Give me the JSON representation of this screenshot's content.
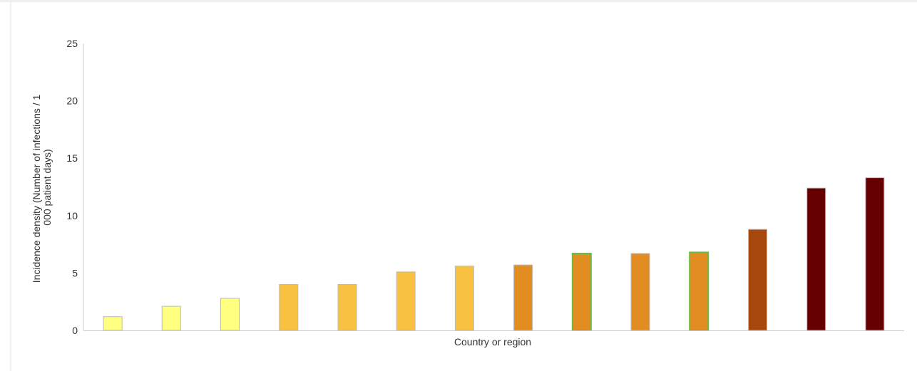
{
  "chart_data": {
    "type": "bar",
    "xlabel": "Country or region",
    "ylabel_lines": [
      "Incidence density (Number of infections / 1",
      "000 patient days)"
    ],
    "ylim": [
      0,
      25
    ],
    "yticks": [
      "0",
      "5",
      "10",
      "15",
      "20",
      "25"
    ],
    "ytick_values": [
      0,
      5,
      10,
      15,
      20,
      25
    ],
    "categories": [
      "",
      "",
      "",
      "",
      "",
      "",
      "",
      "",
      "",
      "",
      "",
      "",
      "",
      ""
    ],
    "values": [
      1.2,
      2.1,
      2.8,
      4.0,
      4.0,
      5.1,
      5.6,
      5.7,
      6.7,
      6.7,
      6.8,
      8.8,
      12.4,
      13.3
    ],
    "bar_colors": [
      "#FFFF80",
      "#FFFF80",
      "#FFFF80",
      "#F9C140",
      "#F9C140",
      "#F9C140",
      "#F9C140",
      "#E18D22",
      "#E18D22",
      "#E18D22",
      "#E18D22",
      "#A6470E",
      "#660000",
      "#660000"
    ],
    "highlighted": [
      false,
      false,
      false,
      false,
      false,
      false,
      false,
      false,
      true,
      false,
      true,
      false,
      false,
      false
    ],
    "highlight_color": "#6DBB3C",
    "grid": false,
    "legend": "none"
  }
}
